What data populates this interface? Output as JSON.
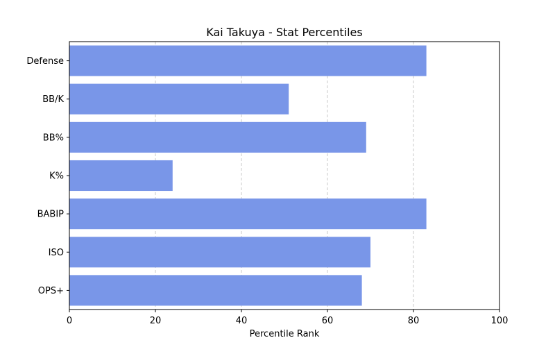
{
  "chart_data": {
    "type": "bar",
    "orientation": "horizontal",
    "title": "Kai Takuya - Stat Percentiles",
    "xlabel": "Percentile Rank",
    "ylabel": "",
    "xlim": [
      0,
      100
    ],
    "xticks": [
      0,
      20,
      40,
      60,
      80,
      100
    ],
    "grid": "vertical dashed",
    "bar_color": "#7996e8",
    "categories": [
      "Defense",
      "BB/K",
      "BB%",
      "K%",
      "BABIP",
      "ISO",
      "OPS+"
    ],
    "values": [
      83,
      51,
      69,
      24,
      83,
      70,
      68
    ]
  }
}
